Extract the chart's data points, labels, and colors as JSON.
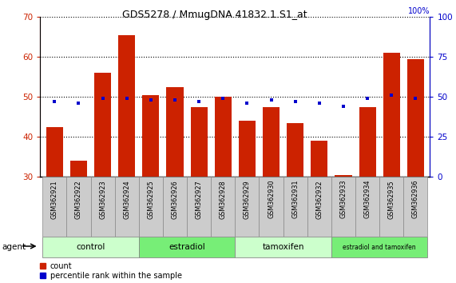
{
  "title": "GDS5278 / MmugDNA.41832.1.S1_at",
  "samples": [
    "GSM362921",
    "GSM362922",
    "GSM362923",
    "GSM362924",
    "GSM362925",
    "GSM362926",
    "GSM362927",
    "GSM362928",
    "GSM362929",
    "GSM362930",
    "GSM362931",
    "GSM362932",
    "GSM362933",
    "GSM362934",
    "GSM362935",
    "GSM362936"
  ],
  "counts": [
    42.5,
    34.0,
    56.0,
    65.5,
    50.5,
    52.5,
    47.5,
    50.0,
    44.0,
    47.5,
    43.5,
    39.0,
    30.5,
    47.5,
    61.0,
    59.5
  ],
  "percentile": [
    47,
    46,
    49,
    49,
    48,
    48,
    47,
    49,
    46,
    48,
    47,
    46,
    44,
    49,
    51,
    49
  ],
  "count_color": "#cc2200",
  "percentile_color": "#0000cc",
  "bar_bottom": 30,
  "ylim_left": [
    30,
    70
  ],
  "ylim_right": [
    0,
    100
  ],
  "yticks_left": [
    30,
    40,
    50,
    60,
    70
  ],
  "yticks_right": [
    0,
    25,
    50,
    75,
    100
  ],
  "groups": [
    {
      "label": "control",
      "start": 0,
      "end": 4,
      "color": "#ccffcc"
    },
    {
      "label": "estradiol",
      "start": 4,
      "end": 8,
      "color": "#77ee77"
    },
    {
      "label": "tamoxifen",
      "start": 8,
      "end": 12,
      "color": "#ccffcc"
    },
    {
      "label": "estradiol and tamoxifen",
      "start": 12,
      "end": 16,
      "color": "#77ee77"
    }
  ],
  "bg_color": "#ffffff",
  "tick_label_color_left": "#cc2200",
  "tick_label_color_right": "#0000cc",
  "cell_bg": "#cccccc",
  "cell_border": "#888888",
  "title_fontsize": 9,
  "bar_width": 0.7,
  "legend_count": "count",
  "legend_percentile": "percentile rank within the sample"
}
